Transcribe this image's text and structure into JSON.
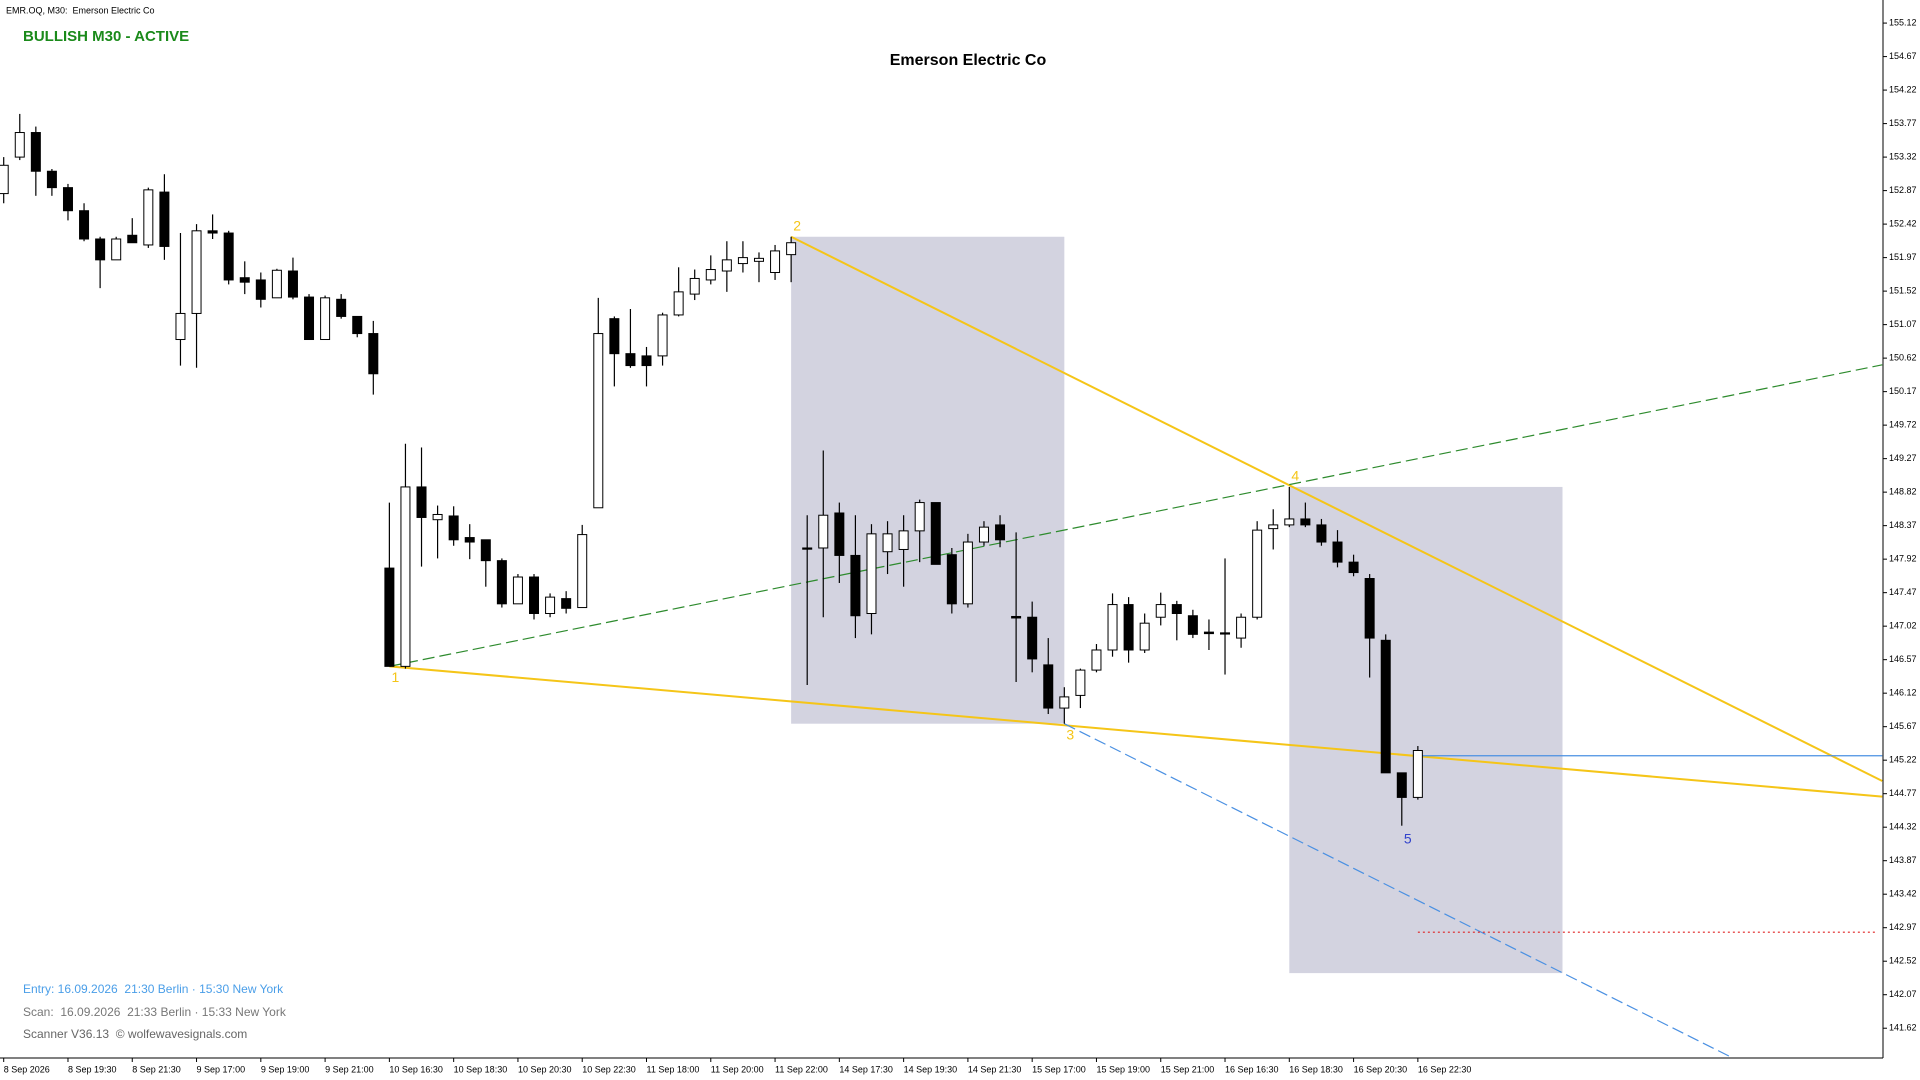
{
  "header": {
    "symbol": "EMR.OQ, M30:  Emerson Electric Co",
    "status": "BULLISH M30 - ACTIVE"
  },
  "footer": {
    "entry": "Entry: 16.09.2026  21:30 Berlin · 15:30 New York",
    "scan": "Scan:  16.09.2026  21:33 Berlin · 15:33 New York",
    "scanner": "Scanner V36.13  © wolfewavesignals.com"
  },
  "chart_data": {
    "type": "candlestick",
    "title": "Emerson Electric Co",
    "categories": [
      "8 Sep 2026",
      null,
      null,
      null,
      "8 Sep 19:30",
      null,
      null,
      null,
      "8 Sep 21:30",
      null,
      null,
      null,
      "9 Sep 17:00",
      null,
      null,
      null,
      "9 Sep 19:00",
      null,
      null,
      null,
      "9 Sep 21:00",
      null,
      null,
      null,
      "10 Sep 16:30",
      null,
      null,
      null,
      "10 Sep 18:30",
      null,
      null,
      null,
      "10 Sep 20:30",
      null,
      null,
      null,
      "10 Sep 22:30",
      null,
      null,
      null,
      "11 Sep 18:00",
      null,
      null,
      null,
      "11 Sep 20:00",
      null,
      null,
      null,
      "11 Sep 22:00",
      null,
      null,
      null,
      "14 Sep 17:30",
      null,
      null,
      null,
      "14 Sep 19:30",
      null,
      null,
      null,
      "14 Sep 21:30",
      null,
      null,
      null,
      "15 Sep 17:00",
      null,
      null,
      null,
      "15 Sep 19:00",
      null,
      null,
      null,
      "15 Sep 21:00",
      null,
      null,
      null,
      "16 Sep 16:30",
      null,
      null,
      null,
      "16 Sep 18:30",
      null,
      null,
      null,
      "16 Sep 20:30",
      null,
      null,
      null,
      "16 Sep 22:30"
    ],
    "open": [
      152.83,
      153.32,
      153.65,
      153.13,
      152.91,
      152.6,
      152.22,
      151.94,
      152.27,
      152.14,
      152.85,
      150.87,
      151.22,
      152.33,
      152.3,
      151.7,
      151.67,
      151.43,
      151.79,
      151.44,
      150.87,
      151.41,
      151.18,
      150.95,
      147.8,
      146.48,
      148.89,
      148.45,
      148.5,
      148.21,
      148.18,
      147.9,
      147.32,
      147.68,
      147.19,
      147.39,
      147.27,
      148.61,
      151.15,
      150.68,
      150.65,
      150.65,
      151.2,
      151.48,
      151.67,
      151.79,
      151.89,
      151.92,
      151.77,
      152.01,
      148.07,
      148.07,
      148.54,
      147.97,
      147.19,
      148.02,
      148.05,
      148.3,
      148.68,
      147.98,
      147.32,
      148.15,
      148.38,
      147.15,
      147.14,
      146.5,
      145.92,
      146.09,
      146.43,
      146.7,
      147.31,
      146.7,
      147.14,
      147.31,
      147.16,
      146.94,
      146.93,
      146.86,
      147.14,
      148.33,
      148.38,
      148.46,
      148.38,
      148.15,
      147.88,
      147.66,
      146.83,
      145.05,
      144.72
    ],
    "high": [
      153.32,
      153.9,
      153.73,
      153.16,
      152.96,
      152.7,
      152.25,
      152.25,
      152.5,
      152.91,
      153.09,
      152.3,
      152.42,
      152.55,
      152.33,
      151.92,
      151.77,
      151.82,
      151.97,
      151.48,
      151.46,
      151.48,
      151.18,
      151.12,
      148.68,
      149.47,
      149.42,
      148.64,
      148.63,
      148.39,
      148.18,
      147.93,
      147.72,
      147.72,
      147.46,
      147.49,
      148.38,
      151.43,
      151.18,
      151.28,
      150.77,
      151.23,
      151.84,
      151.81,
      152.0,
      152.19,
      152.19,
      152.04,
      152.14,
      152.25,
      148.51,
      149.38,
      148.68,
      148.51,
      148.39,
      148.43,
      148.51,
      148.72,
      148.68,
      148.07,
      148.26,
      148.43,
      148.51,
      148.28,
      147.35,
      146.86,
      146.2,
      146.45,
      146.78,
      147.46,
      147.41,
      147.19,
      147.47,
      147.36,
      147.24,
      147.11,
      147.93,
      147.19,
      148.43,
      148.59,
      148.89,
      148.68,
      148.46,
      148.31,
      147.98,
      147.72,
      146.91,
      145.05,
      145.41
    ],
    "low": [
      152.7,
      153.28,
      152.8,
      152.8,
      152.47,
      152.19,
      151.56,
      151.94,
      152.17,
      152.1,
      151.94,
      150.52,
      150.49,
      152.22,
      151.61,
      151.48,
      151.3,
      151.43,
      151.41,
      150.87,
      150.87,
      151.15,
      150.9,
      150.13,
      146.48,
      146.45,
      147.82,
      147.93,
      148.1,
      147.92,
      147.55,
      147.27,
      147.32,
      147.11,
      147.14,
      147.19,
      147.27,
      148.61,
      150.24,
      150.49,
      150.24,
      150.52,
      151.18,
      151.4,
      151.61,
      151.51,
      151.77,
      151.64,
      151.67,
      151.64,
      146.23,
      147.14,
      147.6,
      146.86,
      146.91,
      147.72,
      147.55,
      147.88,
      147.85,
      147.19,
      147.27,
      148.1,
      148.08,
      146.27,
      146.4,
      145.84,
      145.71,
      145.92,
      146.4,
      146.61,
      146.53,
      146.66,
      147.03,
      146.83,
      146.86,
      146.7,
      146.37,
      146.73,
      147.11,
      148.05,
      148.35,
      148.35,
      148.1,
      147.81,
      147.69,
      146.33,
      145.05,
      144.34,
      144.69
    ],
    "close": [
      153.21,
      153.65,
      153.13,
      152.91,
      152.6,
      152.22,
      151.94,
      152.22,
      152.17,
      152.88,
      152.12,
      151.22,
      152.33,
      152.3,
      151.67,
      151.64,
      151.41,
      151.8,
      151.44,
      150.87,
      151.43,
      151.18,
      150.95,
      150.41,
      146.48,
      148.89,
      148.48,
      148.52,
      148.18,
      148.15,
      147.9,
      147.32,
      147.68,
      147.19,
      147.41,
      147.26,
      148.25,
      150.95,
      150.68,
      150.52,
      150.52,
      151.2,
      151.51,
      151.69,
      151.81,
      151.94,
      151.97,
      151.96,
      152.06,
      152.17,
      148.06,
      148.51,
      147.97,
      147.16,
      148.26,
      148.26,
      148.3,
      148.68,
      147.85,
      147.32,
      148.15,
      148.35,
      148.18,
      147.13,
      146.58,
      145.92,
      146.07,
      146.43,
      146.7,
      147.31,
      146.7,
      147.06,
      147.31,
      147.19,
      146.91,
      146.92,
      146.92,
      147.14,
      148.31,
      148.38,
      148.46,
      148.38,
      148.15,
      147.88,
      147.74,
      146.86,
      145.05,
      144.72,
      145.35
    ],
    "bull_color": "#ffffff",
    "bear_color": "#000000",
    "ylim": [
      141.22,
      155.43
    ],
    "yticks": [
      155.12,
      154.67,
      154.22,
      153.77,
      153.32,
      152.87,
      152.42,
      151.97,
      151.52,
      151.07,
      150.62,
      150.17,
      149.72,
      149.27,
      148.82,
      148.37,
      147.92,
      147.47,
      147.02,
      146.57,
      146.12,
      145.67,
      145.22,
      144.77,
      144.32,
      143.87,
      143.42,
      142.97,
      142.52,
      142.07,
      141.62
    ],
    "zones": [
      {
        "color": "#d3d3e0",
        "x": [
          49,
          66
        ],
        "values": [
          152.25,
          145.71
        ]
      },
      {
        "color": "#d3d3e0",
        "x": [
          80,
          97
        ],
        "values": [
          148.89,
          142.36
        ]
      }
    ],
    "lines": [
      {
        "color": "#f5c518",
        "style": "solid",
        "x": [
          24,
          116.9
        ],
        "values": [
          146.48,
          144.73
        ]
      },
      {
        "color": "#f5c518",
        "style": "solid",
        "x": [
          49,
          116.9
        ],
        "values": [
          152.25,
          144.94
        ]
      },
      {
        "color": "#2e8b2e",
        "style": "dashed",
        "x": [
          24,
          116.9
        ],
        "values": [
          146.48,
          150.53
        ]
      },
      {
        "color": "#4a90e2",
        "style": "dashed",
        "x": [
          66,
          107.6
        ],
        "values": [
          145.71,
          141.22
        ]
      },
      {
        "color": "#4a90e2",
        "style": "solid",
        "x": [
          88,
          116.9
        ],
        "values": [
          145.28,
          145.28
        ]
      },
      {
        "color": "#e02020",
        "style": "dotted",
        "x": [
          88,
          116.5
        ],
        "values": [
          142.91,
          142.91
        ]
      }
    ],
    "wave_points": {
      "labels": [
        "1",
        "2",
        "3",
        "4",
        "5"
      ],
      "x": [
        24,
        49,
        66,
        80,
        87
      ],
      "values": [
        146.48,
        152.25,
        145.71,
        148.89,
        144.34
      ],
      "colors": [
        "#f5c518",
        "#f5c518",
        "#f5c518",
        "#f5c518",
        "#3344cc"
      ]
    }
  }
}
